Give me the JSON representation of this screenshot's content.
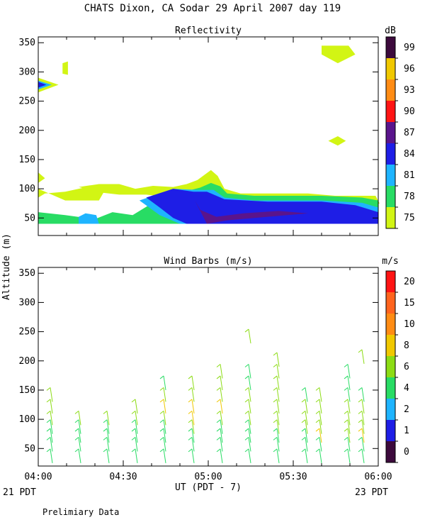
{
  "chart_data": [
    {
      "type": "heatmap",
      "figure_title": "CHATS Dixon, CA  Sodar  29 April 2007  day 119",
      "title": "Reflectivity",
      "units": "dB",
      "ylim": [
        20,
        360
      ],
      "xlim": [
        "04:00",
        "06:00"
      ],
      "yticks": [
        "350",
        "300",
        "250",
        "200",
        "150",
        "100",
        "50"
      ],
      "colorbar": {
        "labels": [
          "99",
          "96",
          "93",
          "90",
          "87",
          "84",
          "81",
          "78",
          "75"
        ],
        "colors": [
          "#3c0a3c",
          "#f0c800",
          "#ff8c14",
          "#ff1414",
          "#5a148c",
          "#1e1ee6",
          "#1eb4ff",
          "#28dc64",
          "#d2f514"
        ]
      },
      "regions": [
        {
          "level": 75,
          "points": [
            [
              0,
              100
            ],
            [
              20,
              80
            ],
            [
              45,
              80
            ],
            [
              50,
              100
            ],
            [
              40,
              105
            ],
            [
              20,
              95
            ],
            [
              5,
              92
            ],
            [
              0,
              85
            ]
          ]
        },
        {
          "level": 75,
          "points": [
            [
              30,
              103
            ],
            [
              45,
              108
            ],
            [
              60,
              108
            ],
            [
              72,
              100
            ],
            [
              85,
              105
            ],
            [
              100,
              103
            ],
            [
              110,
              108
            ],
            [
              118,
              115
            ],
            [
              128,
              132
            ],
            [
              133,
              122
            ],
            [
              138,
              100
            ],
            [
              150,
              92
            ],
            [
              200,
              92
            ],
            [
              220,
              88
            ],
            [
              250,
              88
            ],
            [
              253,
              75
            ],
            [
              240,
              65
            ],
            [
              180,
              60
            ],
            [
              150,
              70
            ],
            [
              130,
              78
            ],
            [
              100,
              85
            ],
            [
              80,
              90
            ],
            [
              60,
              90
            ],
            [
              45,
              94
            ],
            [
              35,
              100
            ]
          ]
        },
        {
          "level": 78,
          "points": [
            [
              0,
              60
            ],
            [
              20,
              55
            ],
            [
              42,
              48
            ],
            [
              55,
              60
            ],
            [
              70,
              55
            ],
            [
              82,
              72
            ],
            [
              90,
              88
            ],
            [
              110,
              96
            ],
            [
              120,
              102
            ],
            [
              128,
              110
            ],
            [
              135,
              104
            ],
            [
              140,
              92
            ],
            [
              160,
              88
            ],
            [
              210,
              88
            ],
            [
              240,
              85
            ],
            [
              252,
              80
            ],
            [
              252,
              40
            ],
            [
              0,
              40
            ]
          ]
        },
        {
          "level": 81,
          "points": [
            [
              75,
              80
            ],
            [
              100,
              100
            ],
            [
              118,
              98
            ],
            [
              130,
              98
            ],
            [
              138,
              85
            ],
            [
              160,
              80
            ],
            [
              210,
              80
            ],
            [
              240,
              76
            ],
            [
              252,
              68
            ],
            [
              252,
              40
            ],
            [
              105,
              40
            ],
            [
              90,
              55
            ]
          ]
        },
        {
          "level": 84,
          "points": [
            [
              80,
              85
            ],
            [
              100,
              100
            ],
            [
              115,
              95
            ],
            [
              125,
              95
            ],
            [
              138,
              82
            ],
            [
              170,
              78
            ],
            [
              210,
              78
            ],
            [
              235,
              72
            ],
            [
              252,
              60
            ],
            [
              252,
              40
            ],
            [
              110,
              40
            ],
            [
              100,
              50
            ],
            [
              90,
              68
            ]
          ]
        },
        {
          "level": 87,
          "points": [
            [
              116,
              80
            ],
            [
              120,
              64
            ],
            [
              132,
              52
            ],
            [
              152,
              58
            ],
            [
              178,
              62
            ],
            [
              200,
              58
            ],
            [
              170,
              52
            ],
            [
              140,
              46
            ],
            [
              125,
              40
            ]
          ]
        },
        {
          "level": 81,
          "points": [
            [
              30,
              40
            ],
            [
              45,
              40
            ],
            [
              43,
              55
            ],
            [
              35,
              58
            ],
            [
              30,
              52
            ]
          ]
        },
        {
          "level": 75,
          "points": [
            [
              0,
              128
            ],
            [
              5,
              118
            ],
            [
              0,
              110
            ]
          ]
        },
        {
          "level": 75,
          "points": [
            [
              18,
              315
            ],
            [
              22,
              318
            ],
            [
              22,
              295
            ],
            [
              18,
              297
            ]
          ]
        },
        {
          "level": 75,
          "points": [
            [
              210,
              345
            ],
            [
              230,
              345
            ],
            [
              235,
              330
            ],
            [
              222,
              315
            ],
            [
              210,
              330
            ]
          ]
        },
        {
          "level": 75,
          "points": [
            [
              215,
              182
            ],
            [
              222,
              190
            ],
            [
              228,
              182
            ],
            [
              222,
              174
            ]
          ]
        },
        {
          "level": 75,
          "points": [
            [
              0,
              290
            ],
            [
              15,
              278
            ],
            [
              0,
              265
            ]
          ]
        },
        {
          "level": 81,
          "points": [
            [
              0,
              285
            ],
            [
              10,
              278
            ],
            [
              0,
              270
            ]
          ]
        },
        {
          "level": 84,
          "points": [
            [
              0,
              283
            ],
            [
              6,
              278
            ],
            [
              0,
              273
            ]
          ]
        }
      ]
    },
    {
      "type": "scatter",
      "title": "Wind Barbs (m/s)",
      "units": "m/s",
      "ylabel": "Altitude (m)",
      "xlabel": "UT  (PDT - 7)",
      "x_ticks": [
        "04:00",
        "04:30",
        "05:00",
        "05:30",
        "06:00"
      ],
      "ylim": [
        20,
        360
      ],
      "yticks": [
        "350",
        "300",
        "250",
        "200",
        "150",
        "100",
        "50"
      ],
      "left_bottom_label": "21 PDT",
      "right_bottom_label": "23 PDT",
      "colorbar": {
        "labels": [
          "20",
          "15",
          "10",
          "8",
          "6",
          "4",
          "2",
          "1",
          "0"
        ],
        "colors": [
          "#ff1414",
          "#ff641e",
          "#ff8c14",
          "#f0c800",
          "#8cdc14",
          "#28dc64",
          "#1eb4ff",
          "#1e1ee6",
          "#3c0a3c"
        ]
      },
      "profiles": [
        {
          "time": "04:05",
          "levels": [
            [
              25,
              5
            ],
            [
              45,
              4
            ],
            [
              60,
              4
            ],
            [
              75,
              5
            ],
            [
              90,
              6
            ],
            [
              110,
              7
            ],
            [
              130,
              7
            ]
          ]
        },
        {
          "time": "04:15",
          "levels": [
            [
              25,
              4
            ],
            [
              45,
              4
            ],
            [
              60,
              4
            ],
            [
              75,
              5
            ],
            [
              90,
              6
            ]
          ]
        },
        {
          "time": "04:25",
          "levels": [
            [
              25,
              4
            ],
            [
              45,
              4
            ],
            [
              60,
              4
            ],
            [
              75,
              5
            ],
            [
              90,
              6
            ]
          ]
        },
        {
          "time": "04:35",
          "levels": [
            [
              25,
              4
            ],
            [
              45,
              4
            ],
            [
              60,
              4
            ],
            [
              75,
              5
            ],
            [
              90,
              6
            ],
            [
              110,
              7
            ]
          ]
        },
        {
          "time": "04:45",
          "levels": [
            [
              25,
              4
            ],
            [
              45,
              4
            ],
            [
              60,
              5
            ],
            [
              75,
              5
            ],
            [
              90,
              6
            ],
            [
              110,
              8
            ],
            [
              130,
              6
            ],
            [
              150,
              5
            ]
          ]
        },
        {
          "time": "04:55",
          "levels": [
            [
              25,
              4
            ],
            [
              45,
              4
            ],
            [
              60,
              5
            ],
            [
              75,
              6
            ],
            [
              90,
              8
            ],
            [
              110,
              8
            ],
            [
              130,
              7
            ],
            [
              150,
              6
            ]
          ]
        },
        {
          "time": "05:05",
          "levels": [
            [
              25,
              4
            ],
            [
              45,
              4
            ],
            [
              60,
              4
            ],
            [
              75,
              5
            ],
            [
              90,
              6
            ],
            [
              110,
              8
            ],
            [
              130,
              7
            ],
            [
              150,
              6
            ],
            [
              170,
              6
            ]
          ]
        },
        {
          "time": "05:15",
          "levels": [
            [
              25,
              4
            ],
            [
              45,
              4
            ],
            [
              60,
              5
            ],
            [
              75,
              5
            ],
            [
              90,
              6
            ],
            [
              110,
              7
            ],
            [
              130,
              7
            ],
            [
              150,
              5
            ],
            [
              170,
              5
            ],
            [
              230,
              6
            ]
          ]
        },
        {
          "time": "05:25",
          "levels": [
            [
              25,
              4
            ],
            [
              45,
              4
            ],
            [
              60,
              5
            ],
            [
              75,
              6
            ],
            [
              90,
              7
            ],
            [
              110,
              7
            ],
            [
              130,
              6
            ],
            [
              150,
              6
            ],
            [
              170,
              6
            ],
            [
              190,
              7
            ]
          ]
        },
        {
          "time": "05:35",
          "levels": [
            [
              25,
              4
            ],
            [
              45,
              4
            ],
            [
              60,
              5
            ],
            [
              75,
              6
            ],
            [
              90,
              7
            ],
            [
              110,
              6
            ],
            [
              130,
              5
            ]
          ]
        },
        {
          "time": "05:40",
          "levels": [
            [
              25,
              4
            ],
            [
              45,
              5
            ],
            [
              60,
              8
            ],
            [
              75,
              7
            ],
            [
              90,
              6
            ],
            [
              110,
              6
            ],
            [
              130,
              6
            ]
          ]
        },
        {
          "time": "05:50",
          "levels": [
            [
              25,
              4
            ],
            [
              45,
              4
            ],
            [
              60,
              6
            ],
            [
              75,
              7
            ],
            [
              90,
              6
            ],
            [
              110,
              6
            ],
            [
              130,
              5
            ],
            [
              150,
              5
            ],
            [
              170,
              5
            ]
          ]
        },
        {
          "time": "05:55",
          "levels": [
            [
              25,
              4
            ],
            [
              45,
              5
            ],
            [
              60,
              8
            ],
            [
              75,
              7
            ],
            [
              90,
              6
            ],
            [
              110,
              6
            ],
            [
              130,
              5
            ],
            [
              195,
              7
            ]
          ]
        }
      ]
    }
  ],
  "footer": {
    "note": "Prelimiary Data"
  }
}
